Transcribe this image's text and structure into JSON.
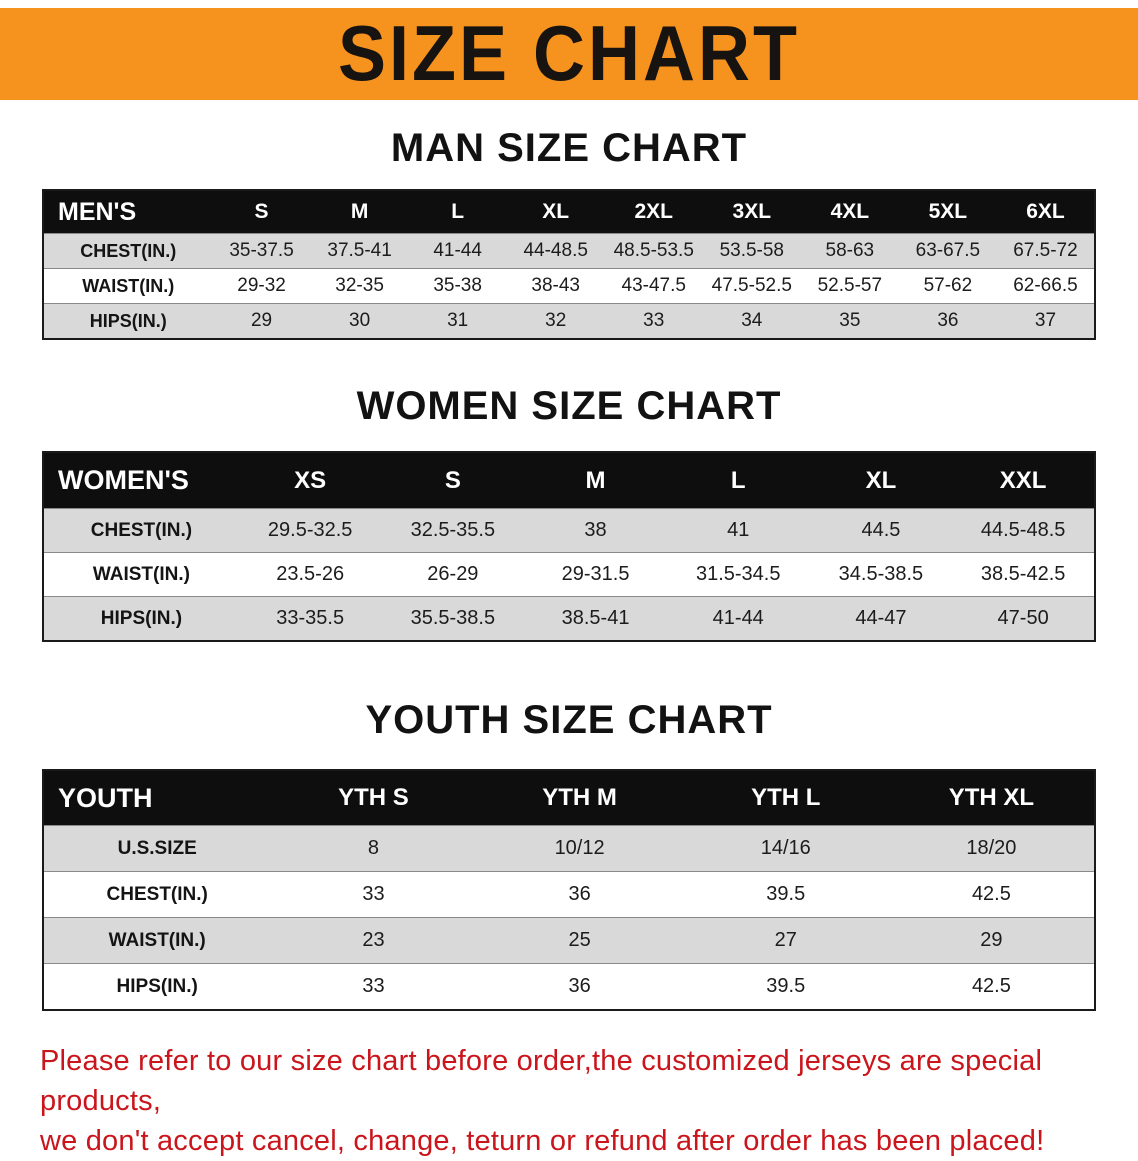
{
  "banner": {
    "title": "SIZE CHART",
    "bg_color": "#f6921e",
    "text_color": "#171310"
  },
  "sections": [
    {
      "heading": "MAN SIZE CHART",
      "table": {
        "header": [
          "MEN'S",
          "S",
          "M",
          "L",
          "XL",
          "2XL",
          "3XL",
          "4XL",
          "5XL",
          "6XL"
        ],
        "rows": [
          [
            "CHEST(IN.)",
            "35-37.5",
            "37.5-41",
            "41-44",
            "44-48.5",
            "48.5-53.5",
            "53.5-58",
            "58-63",
            "63-67.5",
            "67.5-72"
          ],
          [
            "WAIST(IN.)",
            "29-32",
            "32-35",
            "35-38",
            "38-43",
            "43-47.5",
            "47.5-52.5",
            "52.5-57",
            "57-62",
            "62-66.5"
          ],
          [
            "HIPS(IN.)",
            "29",
            "30",
            "31",
            "32",
            "33",
            "34",
            "35",
            "36",
            "37"
          ]
        ]
      }
    },
    {
      "heading": "WOMEN SIZE CHART",
      "table": {
        "header": [
          "WOMEN'S",
          "XS",
          "S",
          "M",
          "L",
          "XL",
          "XXL"
        ],
        "rows": [
          [
            "CHEST(IN.)",
            "29.5-32.5",
            "32.5-35.5",
            "38",
            "41",
            "44.5",
            "44.5-48.5"
          ],
          [
            "WAIST(IN.)",
            "23.5-26",
            "26-29",
            "29-31.5",
            "31.5-34.5",
            "34.5-38.5",
            "38.5-42.5"
          ],
          [
            "HIPS(IN.)",
            "33-35.5",
            "35.5-38.5",
            "38.5-41",
            "41-44",
            "44-47",
            "47-50"
          ]
        ]
      }
    },
    {
      "heading": "YOUTH SIZE CHART",
      "table": {
        "header": [
          "YOUTH",
          "YTH S",
          "YTH M",
          "YTH L",
          "YTH XL"
        ],
        "rows": [
          [
            "U.S.SIZE",
            "8",
            "10/12",
            "14/16",
            "18/20"
          ],
          [
            "CHEST(IN.)",
            "33",
            "36",
            "39.5",
            "42.5"
          ],
          [
            "WAIST(IN.)",
            "23",
            "25",
            "27",
            "29"
          ],
          [
            "HIPS(IN.)",
            "33",
            "36",
            "39.5",
            "42.5"
          ]
        ]
      }
    }
  ],
  "footer": {
    "line1": "Please refer to our size chart before order,the customized jerseys are special products,",
    "line2": "we don't accept cancel, change, teturn or refund after order has been placed!",
    "text_color": "#c9151b"
  },
  "colors": {
    "banner_orange": "#f6921e",
    "table_header_black": "#0e0e0e",
    "row_stripe_gray": "#d9d9d9",
    "disclaimer_red": "#c9151b"
  }
}
